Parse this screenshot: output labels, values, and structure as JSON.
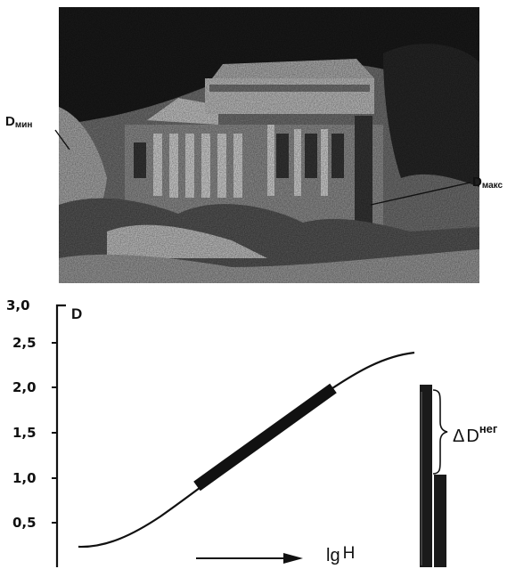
{
  "photo": {
    "label_min_main": "D",
    "label_min_sub": "мин",
    "label_max_main": "D",
    "label_max_sub": "макс"
  },
  "graph": {
    "y_axis_label": "D",
    "x_axis_label_main": "lg",
    "x_axis_label_sub": "H",
    "y_ticks": [
      "3,0",
      "2,5",
      "2,0",
      "1,5",
      "1,0",
      "0,5"
    ],
    "delta_label_prefix": "Δ",
    "delta_label_main": "D",
    "delta_label_sup": "нег"
  },
  "colors": {
    "ink": "#111111",
    "background": "#ffffff"
  }
}
